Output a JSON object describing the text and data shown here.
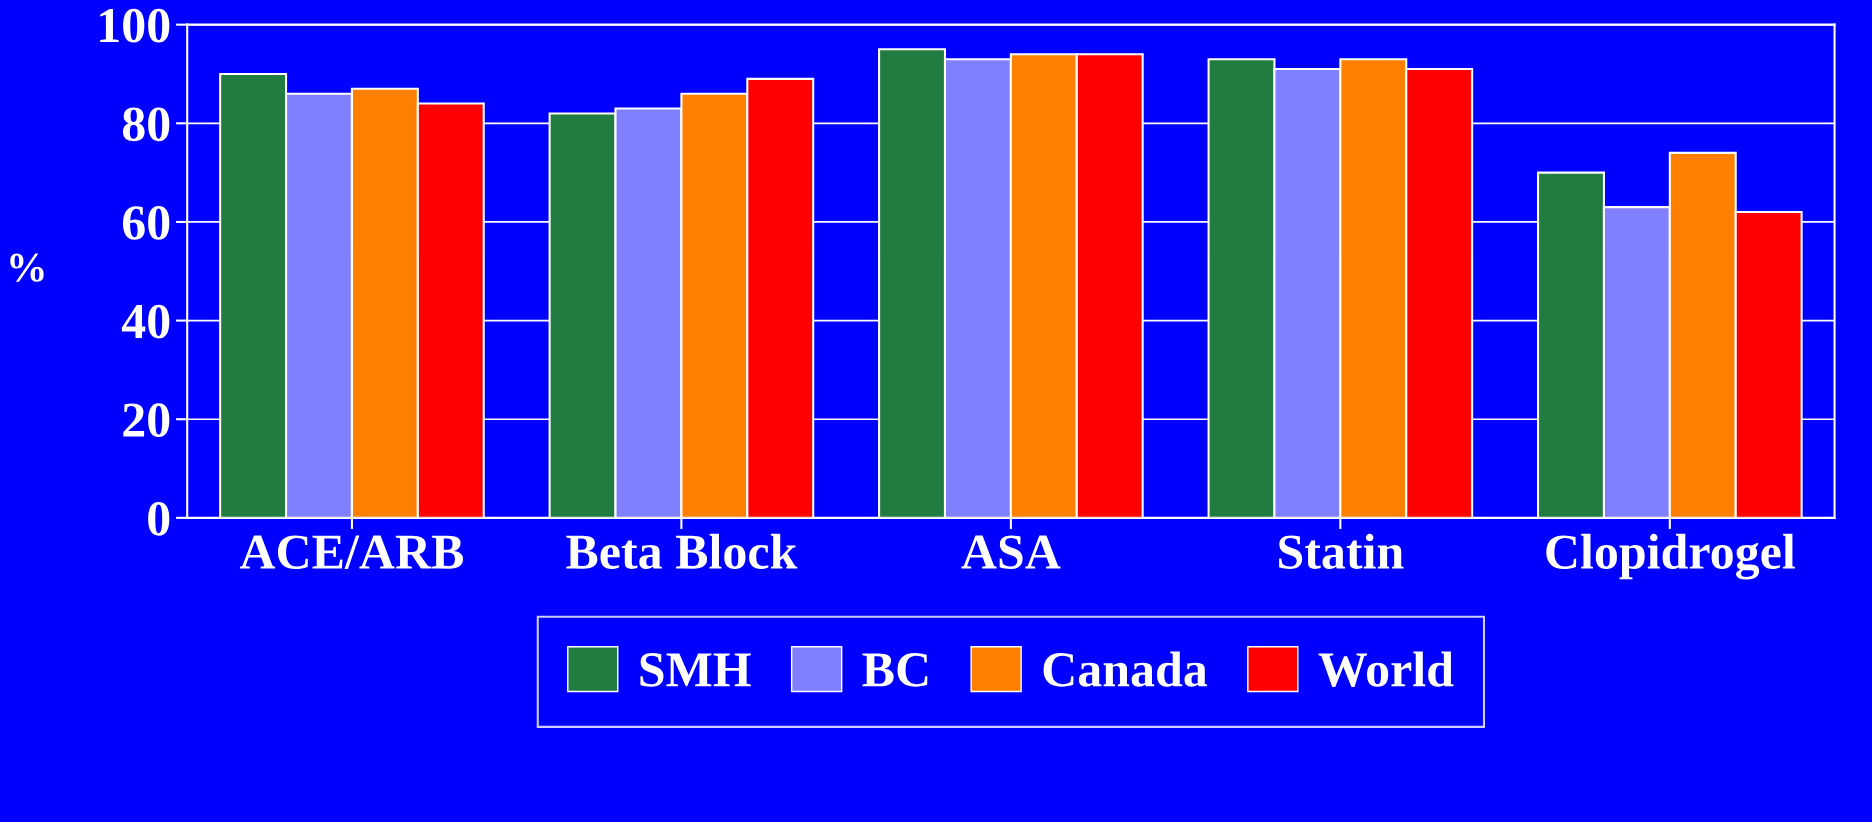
{
  "chart_data": {
    "type": "bar",
    "ylabel": "%",
    "categories": [
      "ACE/ARB",
      "Beta Block",
      "ASA",
      "Statin",
      "Clopidrogel"
    ],
    "series": [
      {
        "name": "SMH",
        "color": "#217c42",
        "values": [
          90,
          82,
          95,
          93,
          70
        ]
      },
      {
        "name": "BC",
        "color": "#8080ff",
        "values": [
          86,
          83,
          93,
          91,
          63
        ]
      },
      {
        "name": "Canada",
        "color": "#ff8000",
        "values": [
          87,
          86,
          94,
          93,
          74
        ]
      },
      {
        "name": "World",
        "color": "#ff0000",
        "values": [
          84,
          89,
          94,
          91,
          62
        ]
      }
    ],
    "ylim": [
      0,
      100
    ],
    "yticks": [
      0,
      20,
      40,
      60,
      80,
      100
    ],
    "grid": "y",
    "legend": "bottom"
  }
}
